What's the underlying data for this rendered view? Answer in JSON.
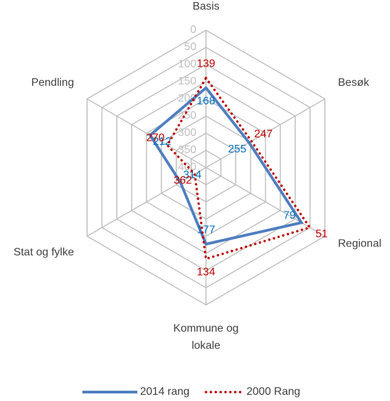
{
  "chart_data": {
    "type": "radar",
    "categories": [
      "Basis",
      "Besøk",
      "Regional",
      "Kommune og lokale",
      "Stat og fylke",
      "Pendling"
    ],
    "series": [
      {
        "name": "2014 rang",
        "color": "#4f7fc0",
        "label_color": "#0070c0",
        "line_style": "solid",
        "values": [
          168,
          255,
          79,
          177,
          314,
          212
        ]
      },
      {
        "name": "2000 Rang",
        "color": "#c00000",
        "label_color": "#c00000",
        "line_style": "dotted",
        "values": [
          139,
          247,
          51,
          134,
          362,
          270
        ]
      }
    ],
    "rlim": [
      0,
      400
    ],
    "reversed": true,
    "rticks": [
      0,
      50,
      100,
      150,
      200,
      250,
      300,
      350,
      400
    ],
    "grid": true,
    "legend": "bottom"
  }
}
